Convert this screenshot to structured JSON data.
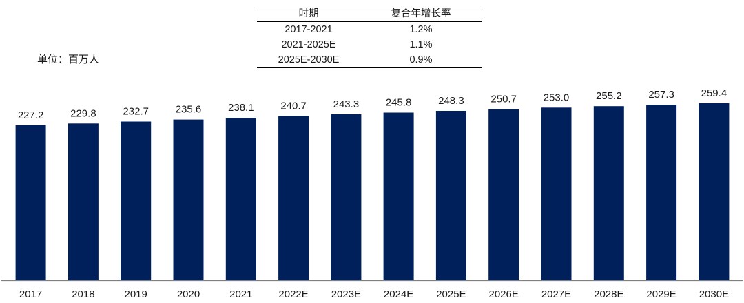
{
  "unit_label": "单位：百万人",
  "cagr_table": {
    "headers": [
      "时期",
      "复合年增长率"
    ],
    "rows": [
      {
        "period": "2017-2021",
        "rate": "1.2%"
      },
      {
        "period": "2021-2025E",
        "rate": "1.1%"
      },
      {
        "period": "2025E-2030E",
        "rate": "0.9%"
      }
    ]
  },
  "colors": {
    "bar": "#00205B",
    "axis": "#7f7f7f",
    "text": "#1a1a1a"
  },
  "chart_data": {
    "type": "bar",
    "title": "",
    "xlabel": "",
    "ylabel": "",
    "categories": [
      "2017",
      "2018",
      "2019",
      "2020",
      "2021",
      "2022E",
      "2023E",
      "2024E",
      "2025E",
      "2026E",
      "2027E",
      "2028E",
      "2029E",
      "2030E"
    ],
    "series": [
      {
        "values": [
          227.2,
          229.8,
          232.7,
          235.6,
          238.1,
          240.7,
          243.3,
          245.8,
          248.3,
          250.7,
          253.0,
          255.2,
          257.3,
          259.4
        ],
        "labels": [
          "227.2",
          "229.8",
          "232.7",
          "235.6",
          "238.1",
          "240.7",
          "243.3",
          "245.8",
          "248.3",
          "250.7",
          "253.0",
          "255.2",
          "257.3",
          "259.4"
        ]
      }
    ],
    "ylim": [
      0,
      259.4
    ],
    "grid": false,
    "legend": "none"
  }
}
